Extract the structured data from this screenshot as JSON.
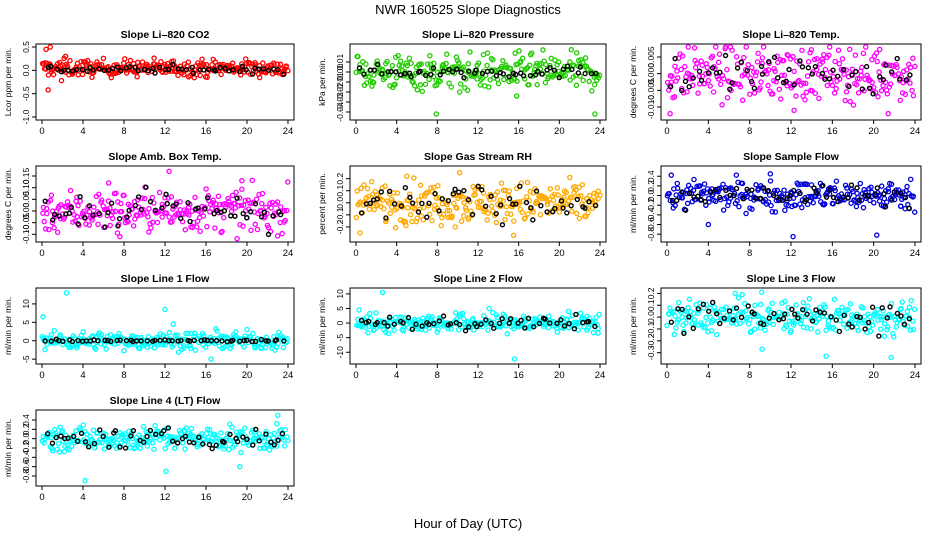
{
  "figure": {
    "title": "NWR  160525  Slope Diagnostics",
    "xlabel": "Hour of Day (UTC)"
  },
  "chart_data": [
    {
      "type": "scatter",
      "title": "Slope Li–820 CO2",
      "ylabel": "Lcor ppm per min.",
      "xlim": [
        0,
        24
      ],
      "ylim": [
        -1,
        0.5
      ],
      "xticks": [
        0,
        4,
        8,
        12,
        16,
        20,
        24
      ],
      "yticks": [
        -1,
        -0.5,
        0,
        0.5
      ],
      "ytick_labels": [
        "-1.0",
        "-0.5",
        "0.0",
        "0.5"
      ],
      "color": "#ff0000",
      "spread": 0.09,
      "center": 0.05,
      "outliers": [
        [
          0.4,
          0.45
        ],
        [
          0.8,
          0.55
        ],
        [
          1.9,
          -0.22
        ],
        [
          0.6,
          -0.42
        ],
        [
          2.3,
          0.3
        ]
      ],
      "mean_series": {
        "color": "#000000",
        "spread": 0.04,
        "center": 0.02
      }
    },
    {
      "type": "scatter",
      "title": "Slope Li–820 Pressure",
      "ylabel": "kPa per min.",
      "xlim": [
        0,
        24
      ],
      "ylim": [
        -0.045,
        0.025
      ],
      "xticks": [
        0,
        4,
        8,
        12,
        16,
        20,
        24
      ],
      "yticks": [
        -0.04,
        -0.03,
        -0.02,
        -0.01,
        0,
        0.01
      ],
      "ytick_labels": [
        "-0.04",
        "-0.03",
        "-0.02",
        "-0.01",
        "0.00",
        "0.01"
      ],
      "color": "#22cc00",
      "spread": 0.009,
      "center": 0.0,
      "outliers": [
        [
          7.9,
          -0.042
        ],
        [
          15.8,
          -0.024
        ],
        [
          23.5,
          -0.042
        ],
        [
          10.2,
          -0.02
        ]
      ],
      "mean_series": {
        "color": "#000000",
        "spread": 0.003,
        "center": 0.0
      }
    },
    {
      "type": "scatter",
      "title": "Slope Li–820 Temp.",
      "ylabel": "degrees C per min.",
      "xlim": [
        0,
        24
      ],
      "ylim": [
        -0.013,
        0.008
      ],
      "xticks": [
        0,
        4,
        8,
        12,
        16,
        20,
        24
      ],
      "yticks": [
        -0.01,
        -0.005,
        0,
        0.005
      ],
      "ytick_labels": [
        "-0.010",
        "-0.005",
        "0.000",
        "0.005"
      ],
      "color": "#ff00ff",
      "spread": 0.004,
      "center": 0.0,
      "outliers": [
        [
          0.3,
          -0.012
        ],
        [
          21.4,
          -0.012
        ],
        [
          12.3,
          -0.011
        ]
      ],
      "mean_series": {
        "color": "#000000",
        "spread": 0.0035,
        "center": -0.0005
      }
    },
    {
      "type": "scatter",
      "title": "Slope Amb. Box Temp.",
      "ylabel": "degrees C per min.",
      "xlim": [
        0,
        24
      ],
      "ylim": [
        -0.12,
        0.18
      ],
      "xticks": [
        0,
        4,
        8,
        12,
        16,
        20,
        24
      ],
      "yticks": [
        -0.1,
        -0.05,
        0,
        0.05,
        0.1,
        0.15
      ],
      "ytick_labels": [
        "-0.10",
        "-0.05",
        "0.00",
        "0.05",
        "0.10",
        "0.15"
      ],
      "color": "#ff00ff",
      "spread": 0.045,
      "center": 0.0,
      "outliers": [
        [
          12.4,
          0.17
        ],
        [
          7.6,
          -0.11
        ],
        [
          19.5,
          0.13
        ],
        [
          6.5,
          0.12
        ]
      ],
      "mean_series": {
        "color": "#000000",
        "spread": 0.04,
        "center": 0.0
      }
    },
    {
      "type": "scatter",
      "title": "Slope Gas Stream RH",
      "ylabel": "percent per min.",
      "xlim": [
        0,
        24
      ],
      "ylim": [
        -0.3,
        0.28
      ],
      "xticks": [
        0,
        4,
        8,
        12,
        16,
        20,
        24
      ],
      "yticks": [
        -0.2,
        -0.1,
        0,
        0.1,
        0.2
      ],
      "ytick_labels": [
        "-0.2",
        "-0.1",
        "0.0",
        "0.1",
        "0.2"
      ],
      "color": "#ffaa00",
      "spread": 0.085,
      "center": 0.0,
      "outliers": [
        [
          10.2,
          0.25
        ],
        [
          15.5,
          -0.27
        ],
        [
          5.0,
          0.22
        ],
        [
          0.4,
          -0.25
        ]
      ],
      "mean_series": {
        "color": "#000000",
        "spread": 0.07,
        "center": 0.0
      }
    },
    {
      "type": "scatter",
      "title": "Slope Sample Flow",
      "ylabel": "ml/min per min.",
      "xlim": [
        0,
        24
      ],
      "ylim": [
        -0.9,
        0.55
      ],
      "xticks": [
        0,
        4,
        8,
        12,
        16,
        20,
        24
      ],
      "yticks": [
        -0.8,
        -0.6,
        -0.4,
        -0.2,
        0,
        0.2,
        0.4
      ],
      "ytick_labels": [
        "-0.8",
        "-0.6",
        "-0.4",
        "-0.2",
        "0.0",
        "0.2",
        "0.4"
      ],
      "color": "#0000dd",
      "spread": 0.15,
      "center": 0.0,
      "outliers": [
        [
          12.2,
          -0.85
        ],
        [
          20.3,
          -0.82
        ],
        [
          4.0,
          -0.6
        ],
        [
          10.0,
          0.45
        ]
      ],
      "mean_series": {
        "color": "#000000",
        "spread": 0.12,
        "center": 0.0
      }
    },
    {
      "type": "scatter",
      "title": "Slope Line 1 Flow",
      "ylabel": "ml/min per min.",
      "xlim": [
        0,
        24
      ],
      "ylim": [
        -5.5,
        13.5
      ],
      "xticks": [
        0,
        4,
        8,
        12,
        16,
        20,
        24
      ],
      "yticks": [
        -5,
        0,
        5,
        10
      ],
      "ytick_labels": [
        "-5",
        "0",
        "5",
        "10"
      ],
      "color": "#00ffff",
      "spread": 1.2,
      "center": 0.0,
      "outliers": [
        [
          2.4,
          13
        ],
        [
          12.0,
          8.5
        ],
        [
          0.1,
          6.5
        ],
        [
          12.8,
          4.5
        ],
        [
          16.5,
          -5
        ]
      ],
      "mean_series": {
        "color": "#000000",
        "spread": 0.15,
        "center": 0.0
      }
    },
    {
      "type": "scatter",
      "title": "Slope Line 2 Flow",
      "ylabel": "ml/min per min.",
      "xlim": [
        0,
        24
      ],
      "ylim": [
        -13,
        11
      ],
      "xticks": [
        0,
        4,
        8,
        12,
        16,
        20,
        24
      ],
      "yticks": [
        -10,
        -5,
        0,
        5,
        10
      ],
      "ytick_labels": [
        "-10",
        "-5",
        "0",
        "5",
        "10"
      ],
      "color": "#00ffff",
      "spread": 1.6,
      "center": 0.0,
      "outliers": [
        [
          2.6,
          10.5
        ],
        [
          0.3,
          4.5
        ],
        [
          15.6,
          -12.3
        ],
        [
          13.1,
          5
        ]
      ],
      "mean_series": {
        "color": "#000000",
        "spread": 1.2,
        "center": 0.0
      }
    },
    {
      "type": "scatter",
      "title": "Slope Line 3 Flow",
      "ylabel": "ml/min per min.",
      "xlim": [
        0,
        24
      ],
      "ylim": [
        -0.37,
        0.22
      ],
      "xticks": [
        0,
        4,
        8,
        12,
        16,
        20,
        24
      ],
      "yticks": [
        -0.3,
        -0.2,
        -0.1,
        0,
        0.1,
        0.2
      ],
      "ytick_labels": [
        "-0.3",
        "-0.2",
        "-0.1",
        "0.0",
        "0.1",
        "0.2"
      ],
      "color": "#00ffff",
      "spread": 0.07,
      "center": 0.0,
      "outliers": [
        [
          21.7,
          -0.34
        ],
        [
          15.4,
          -0.33
        ],
        [
          6.6,
          0.2
        ],
        [
          9.2,
          -0.27
        ]
      ],
      "mean_series": {
        "color": "#000000",
        "spread": 0.06,
        "center": 0.0
      }
    },
    {
      "type": "scatter",
      "title": "Slope Line 4 (LT) Flow",
      "ylabel": "ml/min per min.",
      "xlim": [
        0,
        24
      ],
      "ylim": [
        -0.95,
        0.55
      ],
      "xticks": [
        0,
        4,
        8,
        12,
        16,
        20,
        24
      ],
      "yticks": [
        -0.8,
        -0.6,
        -0.4,
        -0.2,
        0,
        0.2,
        0.4
      ],
      "ytick_labels": [
        "-0.8",
        "-0.6",
        "-0.4",
        "-0.2",
        "0.0",
        "0.2",
        "0.4"
      ],
      "color": "#00ffff",
      "spread": 0.13,
      "center": 0.0,
      "outliers": [
        [
          4.2,
          -0.9
        ],
        [
          12.1,
          -0.7
        ],
        [
          19.3,
          -0.6
        ],
        [
          23.0,
          0.5
        ]
      ],
      "mean_series": {
        "color": "#000000",
        "spread": 0.1,
        "center": 0.0
      }
    }
  ]
}
